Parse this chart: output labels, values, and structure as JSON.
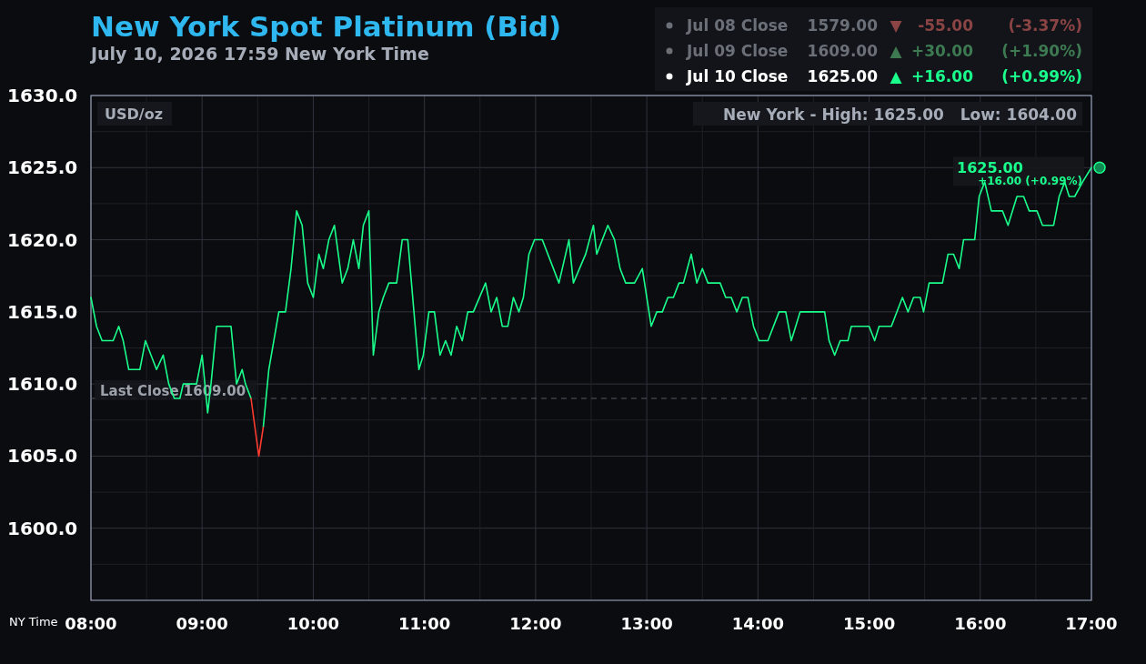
{
  "chart_data": {
    "type": "line",
    "title": "New York Spot Platinum (Bid)",
    "subtitle": "July 10, 2026 17:59 New York Time",
    "xlabel": "NY Time",
    "ylabel": "USD/oz",
    "xlim": [
      8,
      17
    ],
    "ylim": [
      1595,
      1630
    ],
    "xticks": [
      {
        "value": 8,
        "label": "08:00"
      },
      {
        "value": 8.5,
        "label": null
      },
      {
        "value": 9,
        "label": "09:00"
      },
      {
        "value": 9.5,
        "label": null
      },
      {
        "value": 10,
        "label": "10:00"
      },
      {
        "value": 10.5,
        "label": null
      },
      {
        "value": 11,
        "label": "11:00"
      },
      {
        "value": 11.5,
        "label": null
      },
      {
        "value": 12,
        "label": "12:00"
      },
      {
        "value": 12.5,
        "label": null
      },
      {
        "value": 13,
        "label": "13:00"
      },
      {
        "value": 13.5,
        "label": null
      },
      {
        "value": 14,
        "label": "14:00"
      },
      {
        "value": 14.5,
        "label": null
      },
      {
        "value": 15,
        "label": "15:00"
      },
      {
        "value": 15.5,
        "label": null
      },
      {
        "value": 16,
        "label": "16:00"
      },
      {
        "value": 16.5,
        "label": null
      },
      {
        "value": 17,
        "label": "17:00"
      }
    ],
    "yticks": [
      {
        "value": 1597.5,
        "label": null
      },
      {
        "value": 1600,
        "label": "1600.0"
      },
      {
        "value": 1602.5,
        "label": null
      },
      {
        "value": 1605,
        "label": "1605.0"
      },
      {
        "value": 1607.5,
        "label": null
      },
      {
        "value": 1610,
        "label": "1610.0"
      },
      {
        "value": 1612.5,
        "label": null
      },
      {
        "value": 1615,
        "label": "1615.0"
      },
      {
        "value": 1617.5,
        "label": null
      },
      {
        "value": 1620,
        "label": "1620.0"
      },
      {
        "value": 1622.5,
        "label": null
      },
      {
        "value": 1625,
        "label": "1625.0"
      },
      {
        "value": 1627.5,
        "label": null
      },
      {
        "value": 1630,
        "label": "1630.0"
      }
    ],
    "grid": true,
    "marker": "none",
    "line_style": "solid",
    "ref_lines": [
      {
        "axis": "y",
        "value": 1609,
        "label": "Last Close 1609.00",
        "color": "#555a63",
        "line_style": "dashed"
      }
    ],
    "annotations": [
      "Jul 08 Close",
      "1579.00",
      "▼",
      "-55.00",
      "(-3.37%)",
      "Jul 09 Close",
      "1609.00",
      "▲",
      "+30.00",
      "(+1.90%)",
      "Jul 10 Close",
      "1625.00",
      "▲",
      "+16.00",
      "(+0.99%)",
      "New York - High: 1625.00   Low: 1604.00",
      "1625.00",
      "+16.00 (+0.99%)"
    ],
    "series": [
      {
        "color": "#1aff8c",
        "x": [
          8.0,
          8.05,
          8.1,
          8.2,
          8.25,
          8.29,
          8.34,
          8.44,
          8.49,
          8.59,
          8.65,
          8.7,
          8.75,
          8.8,
          8.83,
          8.95,
          9.0,
          9.05,
          9.08,
          9.13,
          9.26,
          9.31,
          9.36,
          9.39,
          9.44,
          9.51,
          9.55,
          9.6,
          9.69,
          9.75,
          9.8,
          9.85,
          9.9,
          9.95,
          10.0,
          10.05,
          10.09,
          10.14,
          10.19,
          10.26,
          10.31,
          10.36,
          10.41,
          10.45,
          10.5,
          10.54,
          10.59,
          10.63,
          10.68,
          10.75,
          10.8,
          10.85,
          10.95,
          10.99,
          11.04,
          11.09,
          11.14,
          11.19,
          11.24,
          11.29,
          11.34,
          11.39,
          11.44,
          11.55,
          11.6,
          11.65,
          11.7,
          11.75,
          11.8,
          11.85,
          11.89,
          11.94,
          11.99,
          12.06,
          12.21,
          12.3,
          12.34,
          12.45,
          12.52,
          12.55,
          12.65,
          12.71,
          12.76,
          12.81,
          12.89,
          12.96,
          13.04,
          13.09,
          13.14,
          13.19,
          13.24,
          13.29,
          13.33,
          13.4,
          13.45,
          13.5,
          13.55,
          13.66,
          13.71,
          13.76,
          13.81,
          13.86,
          13.91,
          13.96,
          14.01,
          14.09,
          14.19,
          14.25,
          14.3,
          14.38,
          14.6,
          14.64,
          14.69,
          14.74,
          14.81,
          14.84,
          15.0,
          15.05,
          15.09,
          15.2,
          15.3,
          15.35,
          15.4,
          15.46,
          15.49,
          15.54,
          15.66,
          15.71,
          15.76,
          15.81,
          15.85,
          15.95,
          15.99,
          16.04,
          16.1,
          16.2,
          16.25,
          16.33,
          16.39,
          16.44,
          16.51,
          16.56,
          16.66,
          16.71,
          16.76,
          16.8,
          16.85,
          16.92,
          17.0
        ],
        "values": [
          1616,
          1614,
          1613,
          1613,
          1614,
          1613,
          1611,
          1611,
          1613,
          1611,
          1612,
          1610,
          1609,
          1609,
          1610,
          1610,
          1612,
          1608,
          1610,
          1614,
          1614,
          1610,
          1611,
          1610,
          1609,
          null,
          1607,
          1611,
          1615,
          1615,
          1618,
          1622,
          1621,
          1617,
          1616,
          1619,
          1618,
          1620,
          1621,
          1617,
          1618,
          1620,
          1618,
          1621,
          1622,
          1612,
          1615,
          1616,
          1617,
          1617,
          1620,
          1620,
          1611,
          1612,
          1615,
          1615,
          1612,
          1613,
          1612,
          1614,
          1613,
          1615,
          1615,
          1617,
          1615,
          1616,
          1614,
          1614,
          1616,
          1615,
          1616,
          1619,
          1620,
          1620,
          1617,
          1620,
          1617,
          1619,
          1621,
          1619,
          1621,
          1620,
          1618,
          1617,
          1617,
          1618,
          1614,
          1615,
          1615,
          1616,
          1616,
          1617,
          1617,
          1619,
          1617,
          1618,
          1617,
          1617,
          1616,
          1616,
          1615,
          1616,
          1616,
          1614,
          1613,
          1613,
          1615,
          1615,
          1613,
          1615,
          1615,
          1613,
          1612,
          1613,
          1613,
          1614,
          1614,
          1613,
          1614,
          1614,
          1616,
          1615,
          1616,
          1616,
          1615,
          1617,
          1617,
          1619,
          1619,
          1618,
          1620,
          1620,
          1623,
          1624,
          1622,
          1622,
          1621,
          1623,
          1623,
          1622,
          1622,
          1621,
          1621,
          1623,
          1624,
          1623,
          1623,
          1624,
          1625
        ]
      },
      {
        "color": "#ff3b30",
        "x": [
          9.44,
          9.51,
          9.55
        ],
        "values": [
          1609,
          1605,
          1607
        ]
      }
    ]
  }
}
